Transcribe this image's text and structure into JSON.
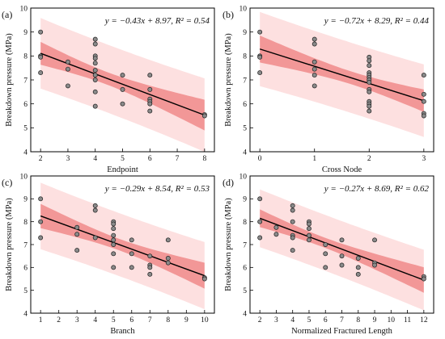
{
  "chart_data": [
    {
      "type": "scatter",
      "panel_label": "(a)",
      "xlabel": "Endpoint",
      "ylabel": "Breakdown pressure (MPa)",
      "xlim": [
        2,
        8
      ],
      "ylim": [
        4,
        10
      ],
      "xticks": [
        2,
        3,
        4,
        5,
        6,
        7,
        8
      ],
      "yticks": [
        4,
        5,
        6,
        7,
        8,
        9,
        10
      ],
      "equation": "y = −0.43x + 8.97, R² = 0.54",
      "fit": {
        "slope": -0.43,
        "intercept": 8.97,
        "r2": 0.54
      },
      "points": [
        [
          2,
          9.0
        ],
        [
          2,
          8.0
        ],
        [
          2,
          7.95
        ],
        [
          2,
          7.3
        ],
        [
          3,
          7.75
        ],
        [
          3,
          7.45
        ],
        [
          3,
          6.75
        ],
        [
          4,
          8.7
        ],
        [
          4,
          8.5
        ],
        [
          4,
          8.0
        ],
        [
          4,
          7.9
        ],
        [
          4,
          7.7
        ],
        [
          4,
          7.4
        ],
        [
          4,
          7.2
        ],
        [
          4,
          7.0
        ],
        [
          4,
          6.5
        ],
        [
          4,
          5.9
        ],
        [
          5,
          7.2
        ],
        [
          5,
          6.6
        ],
        [
          5,
          6.0
        ],
        [
          6,
          7.2
        ],
        [
          6,
          6.6
        ],
        [
          6,
          6.2
        ],
        [
          6,
          6.1
        ],
        [
          6,
          6.0
        ],
        [
          6,
          5.7
        ],
        [
          8,
          5.55
        ],
        [
          8,
          5.5
        ]
      ]
    },
    {
      "type": "scatter",
      "panel_label": "(b)",
      "xlabel": "Cross Node",
      "ylabel": "Breakdown pressure (MPa)",
      "xlim": [
        0,
        3
      ],
      "ylim": [
        4,
        10
      ],
      "xticks": [
        0,
        1,
        2,
        3
      ],
      "yticks": [
        4,
        5,
        6,
        7,
        8,
        9,
        10
      ],
      "equation": "y = −0.72x + 8.29, R² = 0.44",
      "fit": {
        "slope": -0.72,
        "intercept": 8.29,
        "r2": 0.44
      },
      "points": [
        [
          0,
          9.0
        ],
        [
          0,
          8.0
        ],
        [
          0,
          7.95
        ],
        [
          0,
          7.3
        ],
        [
          1,
          8.7
        ],
        [
          1,
          8.5
        ],
        [
          1,
          7.75
        ],
        [
          1,
          7.45
        ],
        [
          1,
          7.2
        ],
        [
          1,
          6.75
        ],
        [
          2,
          7.95
        ],
        [
          2,
          7.8
        ],
        [
          2,
          7.6
        ],
        [
          2,
          7.3
        ],
        [
          2,
          7.2
        ],
        [
          2,
          7.1
        ],
        [
          2,
          7.0
        ],
        [
          2,
          6.9
        ],
        [
          2,
          6.6
        ],
        [
          2,
          6.5
        ],
        [
          2,
          6.1
        ],
        [
          2,
          6.0
        ],
        [
          2,
          5.9
        ],
        [
          2,
          5.7
        ],
        [
          3,
          7.2
        ],
        [
          3,
          6.4
        ],
        [
          3,
          6.1
        ],
        [
          3,
          5.6
        ],
        [
          3,
          5.5
        ]
      ]
    },
    {
      "type": "scatter",
      "panel_label": "(c)",
      "xlabel": "Branch",
      "ylabel": "Breakdown pressure (MPa)",
      "xlim": [
        1,
        10
      ],
      "ylim": [
        4,
        10
      ],
      "xticks": [
        1,
        2,
        3,
        4,
        5,
        6,
        7,
        8,
        9,
        10
      ],
      "yticks": [
        4,
        5,
        6,
        7,
        8,
        9,
        10
      ],
      "equation": "y = −0.29x + 8.54, R² = 0.53",
      "fit": {
        "slope": -0.29,
        "intercept": 8.54,
        "r2": 0.53
      },
      "points": [
        [
          1,
          9.0
        ],
        [
          1,
          8.0
        ],
        [
          1,
          7.3
        ],
        [
          3,
          7.75
        ],
        [
          3,
          7.45
        ],
        [
          3,
          6.75
        ],
        [
          4,
          8.7
        ],
        [
          4,
          8.5
        ],
        [
          4,
          7.3
        ],
        [
          5,
          8.0
        ],
        [
          5,
          7.9
        ],
        [
          5,
          7.7
        ],
        [
          5,
          7.4
        ],
        [
          5,
          7.2
        ],
        [
          5,
          7.0
        ],
        [
          5,
          6.6
        ],
        [
          5,
          6.0
        ],
        [
          6,
          7.2
        ],
        [
          6,
          6.6
        ],
        [
          6,
          6.0
        ],
        [
          7,
          6.5
        ],
        [
          7,
          6.1
        ],
        [
          7,
          6.0
        ],
        [
          7,
          5.7
        ],
        [
          8,
          7.2
        ],
        [
          8,
          6.4
        ],
        [
          8,
          6.2
        ],
        [
          10,
          5.55
        ],
        [
          10,
          5.5
        ]
      ]
    },
    {
      "type": "scatter",
      "panel_label": "(d)",
      "xlabel": "Normalized Fractured Length",
      "ylabel": "Breakdown pressure (MPa)",
      "xlim": [
        2,
        12
      ],
      "ylim": [
        4,
        10
      ],
      "xticks": [
        2,
        3,
        4,
        5,
        6,
        7,
        8,
        9,
        10,
        11,
        12
      ],
      "yticks": [
        4,
        5,
        6,
        7,
        8,
        9,
        10
      ],
      "equation": "y = −0.27x + 8.69, R² = 0.62",
      "fit": {
        "slope": -0.27,
        "intercept": 8.69,
        "r2": 0.62
      },
      "points": [
        [
          2,
          9.0
        ],
        [
          2,
          8.0
        ],
        [
          2,
          7.3
        ],
        [
          3,
          7.75
        ],
        [
          3,
          7.45
        ],
        [
          4,
          8.7
        ],
        [
          4,
          8.5
        ],
        [
          4,
          8.0
        ],
        [
          4,
          7.4
        ],
        [
          4,
          7.3
        ],
        [
          4,
          6.75
        ],
        [
          5,
          8.0
        ],
        [
          5,
          7.9
        ],
        [
          5,
          7.7
        ],
        [
          5,
          7.4
        ],
        [
          5,
          7.2
        ],
        [
          6,
          7.0
        ],
        [
          6,
          6.6
        ],
        [
          6,
          6.0
        ],
        [
          7,
          7.2
        ],
        [
          7,
          6.5
        ],
        [
          7,
          6.1
        ],
        [
          8,
          6.4
        ],
        [
          8,
          6.0
        ],
        [
          8,
          5.7
        ],
        [
          9,
          7.2
        ],
        [
          9,
          6.2
        ],
        [
          9,
          6.1
        ],
        [
          12,
          5.6
        ],
        [
          12,
          5.5
        ]
      ]
    }
  ],
  "colors": {
    "prediction_band": "#fde0e0",
    "confidence_band": "#f08a8a",
    "fit_line": "#000000",
    "point_fill": "#8a8a8a",
    "point_stroke": "#222222"
  }
}
